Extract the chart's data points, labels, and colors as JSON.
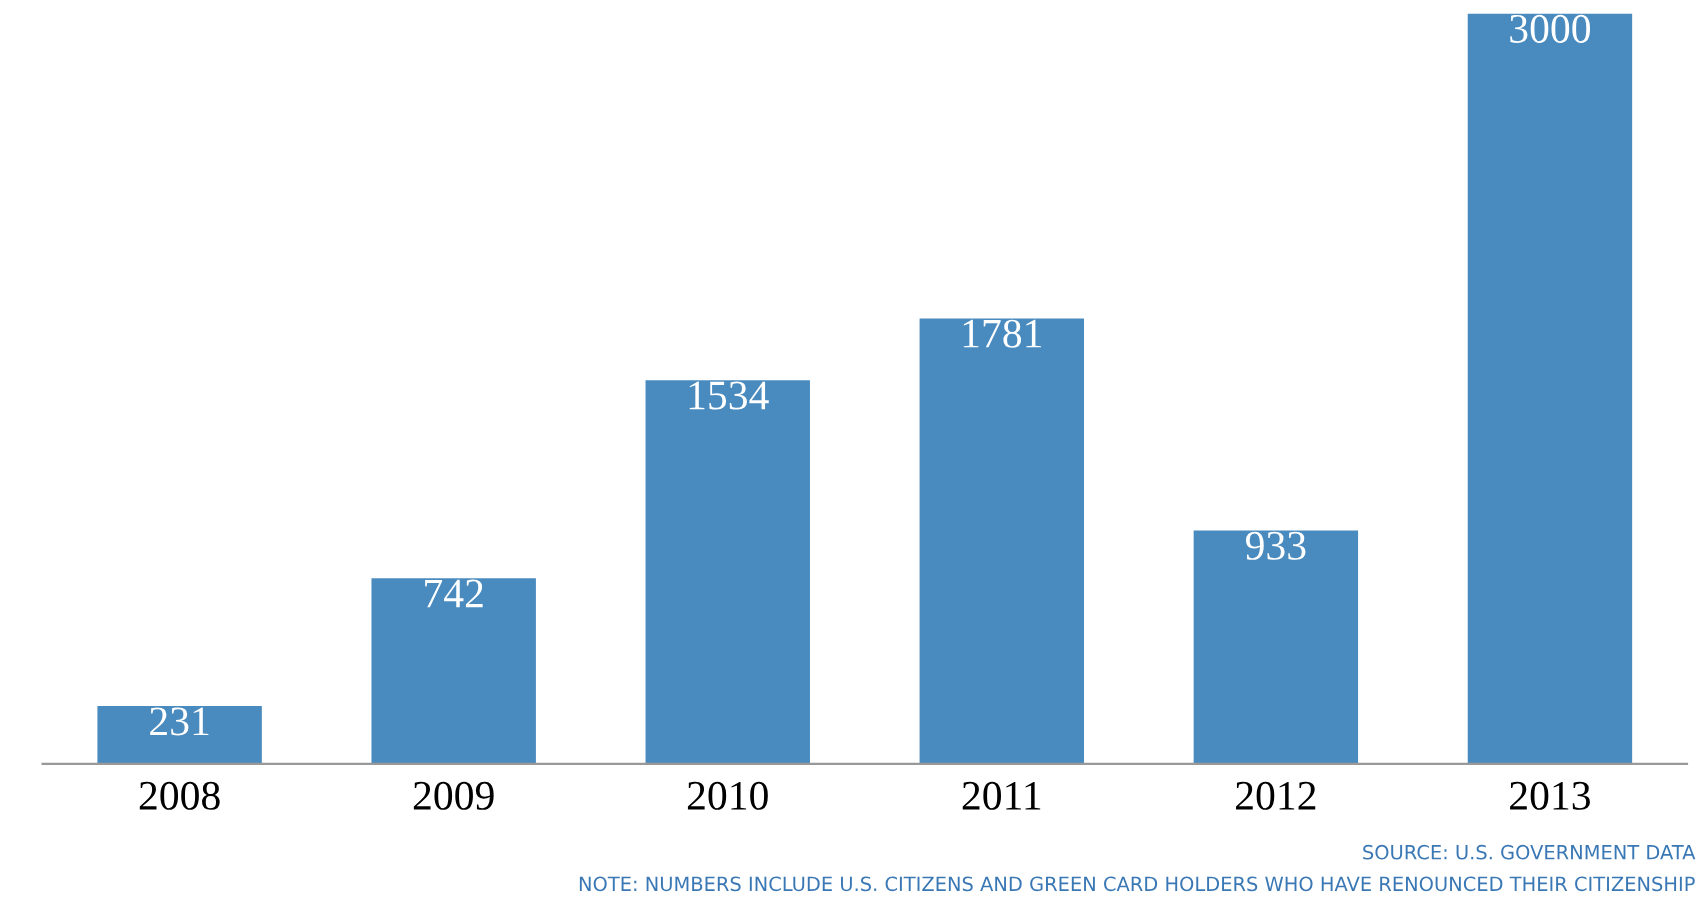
{
  "chart_data": {
    "type": "bar",
    "categories": [
      "2008",
      "2009",
      "2010",
      "2011",
      "2012",
      "2013"
    ],
    "values": [
      231,
      742,
      1534,
      1781,
      933,
      3000
    ],
    "color": "#4a8bbf",
    "data_labels": true,
    "grid": false,
    "legend": false,
    "annotations": [
      "SOURCE: U.S. GOVERNMENT DATA",
      "NOTE: NUMBERS INCLUDE U.S. CITIZENS AND GREEN CARD HOLDERS WHO HAVE RENOUNCED THEIR CITIZENSHIP"
    ]
  }
}
